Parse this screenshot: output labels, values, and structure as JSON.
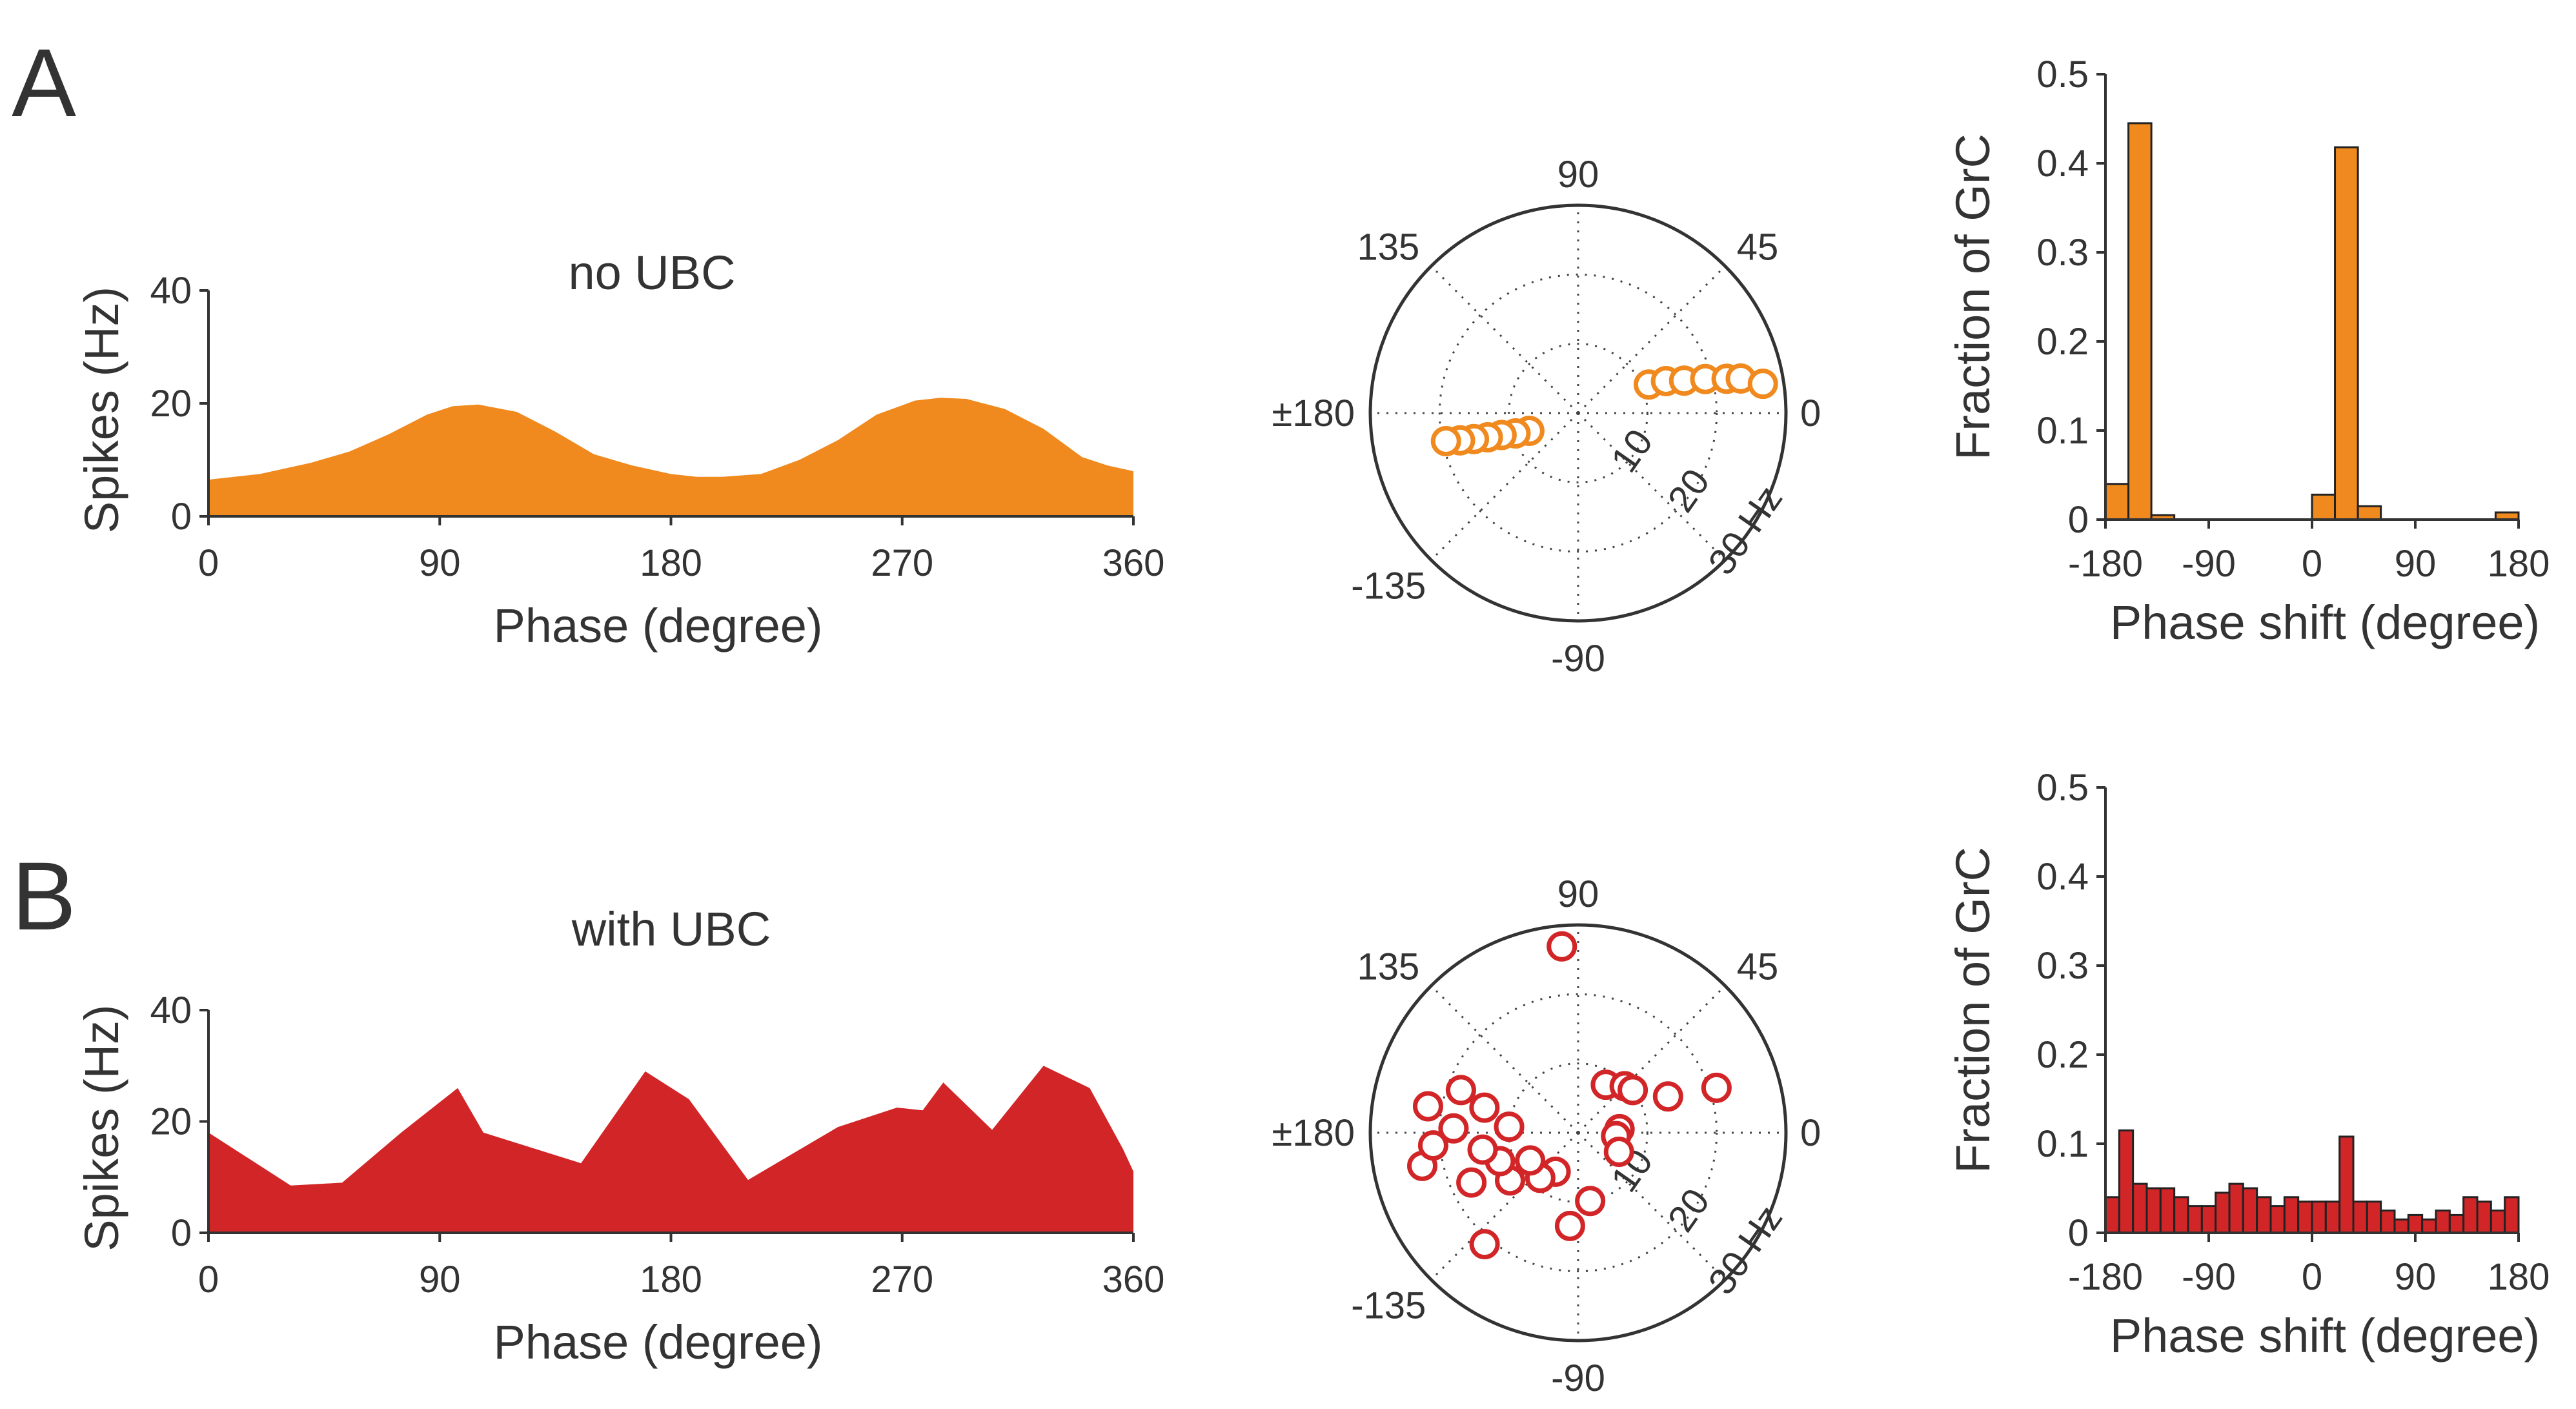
{
  "panels": [
    {
      "letter": "A",
      "title": "no UBC",
      "color": "#f0891e",
      "stroke": "#f0891e"
    },
    {
      "letter": "B",
      "title": "with UBC",
      "color": "#d22527",
      "stroke": "#d22527"
    }
  ],
  "chart_data": [
    {
      "type": "area",
      "panel": "A",
      "title": "no UBC",
      "xlabel": "Phase (degree)",
      "ylabel": "Spikes (Hz)",
      "xlim": [
        0,
        360
      ],
      "ylim": [
        0,
        40
      ],
      "xticks": [
        0,
        90,
        180,
        270,
        360
      ],
      "yticks": [
        0,
        20,
        40
      ],
      "x": [
        0,
        20,
        40,
        55,
        70,
        85,
        95,
        105,
        120,
        135,
        150,
        165,
        180,
        190,
        200,
        215,
        230,
        245,
        260,
        275,
        285,
        295,
        310,
        325,
        340,
        350,
        360
      ],
      "y": [
        6.5,
        7.5,
        9.5,
        11.5,
        14.5,
        18,
        19.5,
        19.8,
        18.5,
        15,
        11,
        9,
        7.5,
        7,
        7,
        7.5,
        10,
        13.5,
        18,
        20.5,
        21,
        20.8,
        19,
        15.5,
        10.5,
        9,
        8
      ]
    },
    {
      "type": "scatter",
      "panel": "A",
      "coords": "polar",
      "angle_ticks": [
        "90",
        "45",
        "0",
        "-45",
        "-90",
        "-135",
        "±180",
        "135"
      ],
      "radial_ticks": [
        "10",
        "20",
        "30 Hz"
      ],
      "rlim": [
        0,
        30
      ],
      "points": [
        {
          "angle": 22,
          "r": 11
        },
        {
          "angle": 20,
          "r": 13.5
        },
        {
          "angle": 17,
          "r": 16
        },
        {
          "angle": 15,
          "r": 19
        },
        {
          "angle": 13,
          "r": 22
        },
        {
          "angle": 12,
          "r": 24
        },
        {
          "angle": 9,
          "r": 27
        },
        {
          "angle": -160,
          "r": 7.5
        },
        {
          "angle": -162,
          "r": 9.5
        },
        {
          "angle": -164,
          "r": 11.5
        },
        {
          "angle": -165,
          "r": 13.5
        },
        {
          "angle": -166,
          "r": 15.5
        },
        {
          "angle": -167,
          "r": 17.5
        },
        {
          "angle": -168,
          "r": 19.5
        }
      ]
    },
    {
      "type": "bar",
      "panel": "A",
      "xlabel": "Phase shift (degree)",
      "ylabel": "Fraction of GrC",
      "xlim": [
        -180,
        180
      ],
      "ylim": [
        0,
        0.5
      ],
      "xticks": [
        -180,
        -90,
        0,
        90,
        180
      ],
      "yticks": [
        0,
        0.1,
        0.2,
        0.3,
        0.4,
        0.5
      ],
      "bin_width": 20,
      "bin_centers": [
        -170,
        -150,
        -130,
        10,
        30,
        50,
        170
      ],
      "values": [
        0.04,
        0.445,
        0.005,
        0.028,
        0.418,
        0.015,
        0.008
      ]
    },
    {
      "type": "area",
      "panel": "B",
      "title": "with UBC",
      "xlabel": "Phase (degree)",
      "ylabel": "Spikes (Hz)",
      "xlim": [
        0,
        360
      ],
      "ylim": [
        0,
        40
      ],
      "xticks": [
        0,
        90,
        180,
        270,
        360
      ],
      "yticks": [
        0,
        20,
        40
      ],
      "x": [
        0,
        32,
        52,
        75,
        97,
        107,
        145,
        170,
        187,
        210,
        245,
        268,
        278,
        286,
        305,
        325,
        343,
        356,
        360
      ],
      "y": [
        18,
        8.5,
        9,
        18,
        26,
        18,
        12.5,
        29,
        24,
        9.5,
        19,
        22.5,
        22,
        27,
        18.5,
        30,
        26,
        15,
        11
      ]
    },
    {
      "type": "scatter",
      "panel": "B",
      "coords": "polar",
      "angle_ticks": [
        "90",
        "45",
        "0",
        "-45",
        "-90",
        "-135",
        "±180",
        "135"
      ],
      "radial_ticks": [
        "10",
        "20",
        "30 Hz"
      ],
      "rlim": [
        0,
        30
      ],
      "points": [
        {
          "angle": 95,
          "r": 27
        },
        {
          "angle": 60,
          "r": 8
        },
        {
          "angle": 45,
          "r": 9.5
        },
        {
          "angle": 38,
          "r": 10
        },
        {
          "angle": 22,
          "r": 14
        },
        {
          "angle": 18,
          "r": 21
        },
        {
          "angle": 5,
          "r": 6
        },
        {
          "angle": -5,
          "r": 5.5
        },
        {
          "angle": -25,
          "r": 6.5
        },
        {
          "angle": -80,
          "r": 10
        },
        {
          "angle": -95,
          "r": 13.5
        },
        {
          "angle": -120,
          "r": 6.5
        },
        {
          "angle": -130,
          "r": 8.5
        },
        {
          "angle": -145,
          "r": 12
        },
        {
          "angle": -160,
          "r": 12
        },
        {
          "angle": -170,
          "r": 14
        },
        {
          "angle": -168,
          "r": 23
        },
        {
          "angle": -130,
          "r": 21
        },
        {
          "angle": 175,
          "r": 10
        },
        {
          "angle": 165,
          "r": 14
        },
        {
          "angle": 160,
          "r": 18
        },
        {
          "angle": 178,
          "r": 18
        },
        {
          "angle": -175,
          "r": 21
        },
        {
          "angle": -155,
          "r": 17
        },
        {
          "angle": 170,
          "r": 22
        },
        {
          "angle": -150,
          "r": 8
        }
      ]
    },
    {
      "type": "bar",
      "panel": "B",
      "xlabel": "Phase shift (degree)",
      "ylabel": "Fraction of GrC",
      "xlim": [
        -180,
        180
      ],
      "ylim": [
        0,
        0.5
      ],
      "xticks": [
        -180,
        -90,
        0,
        90,
        180
      ],
      "yticks": [
        0,
        0.1,
        0.2,
        0.3,
        0.4,
        0.5
      ],
      "bin_width": 12,
      "bin_centers": [
        -174,
        -162,
        -150,
        -138,
        -126,
        -114,
        -102,
        -90,
        -78,
        -66,
        -54,
        -42,
        -30,
        -18,
        -6,
        6,
        18,
        30,
        42,
        54,
        66,
        78,
        90,
        102,
        114,
        126,
        138,
        150,
        162,
        174
      ],
      "values": [
        0.04,
        0.115,
        0.055,
        0.05,
        0.05,
        0.04,
        0.03,
        0.03,
        0.045,
        0.055,
        0.05,
        0.04,
        0.03,
        0.04,
        0.035,
        0.035,
        0.035,
        0.108,
        0.035,
        0.035,
        0.025,
        0.015,
        0.02,
        0.015,
        0.025,
        0.02,
        0.04,
        0.035,
        0.025,
        0.04
      ]
    }
  ]
}
